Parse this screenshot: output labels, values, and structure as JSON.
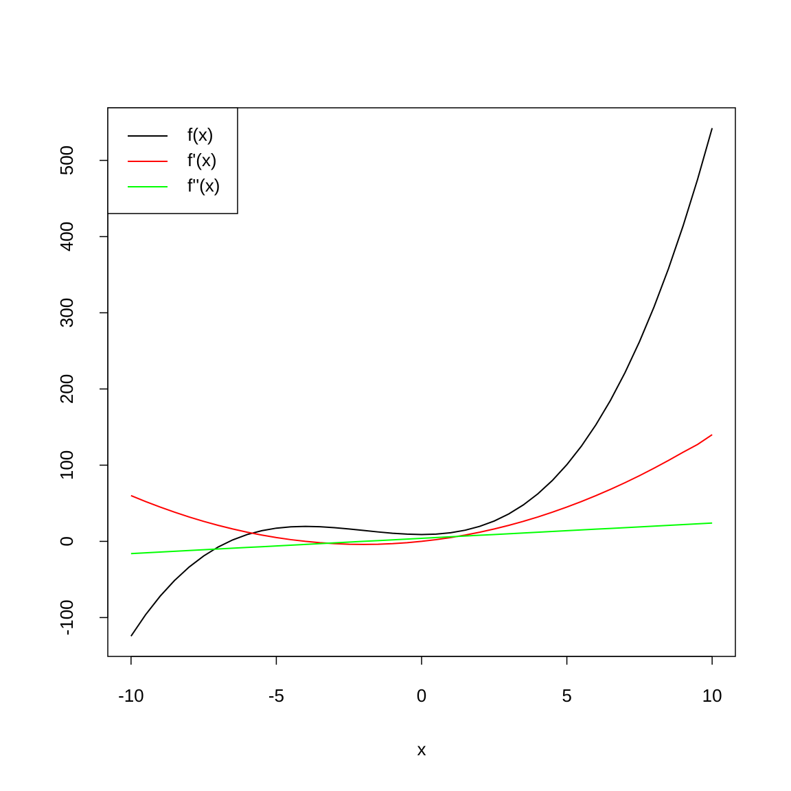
{
  "chart_data": {
    "type": "line",
    "xlabel": "x",
    "x": [
      -10,
      -9.5,
      -9,
      -8.5,
      -8,
      -7.5,
      -7,
      -6.5,
      -6,
      -5.5,
      -5,
      -4.5,
      -4,
      -3.5,
      -3,
      -2.5,
      -2,
      -1.5,
      -1,
      -0.5,
      0,
      0.5,
      1,
      1.5,
      2,
      2.5,
      3,
      3.5,
      4,
      4.5,
      5,
      5.5,
      6,
      6.5,
      7,
      7.5,
      8,
      8.5,
      9,
      9.5,
      10
    ],
    "series": [
      {
        "name": "f(x)",
        "color": "#000000",
        "values": [
          -124.33,
          -96.29,
          -72,
          -51.21,
          -33.67,
          -19.13,
          -7.33,
          1.96,
          9,
          14.04,
          17.33,
          19.13,
          19.67,
          19.21,
          18,
          16.29,
          14.33,
          12.38,
          10.67,
          9.46,
          9,
          9.54,
          11.33,
          14.63,
          19.67,
          26.71,
          36,
          47.79,
          62.33,
          79.88,
          100.67,
          124.96,
          153,
          185.04,
          221.33,
          262.13,
          307.67,
          358.21,
          414,
          475.29,
          542.33
        ]
      },
      {
        "name": "f'(x)",
        "color": "#ff0000",
        "values": [
          60,
          52.25,
          45,
          38.25,
          32,
          26.25,
          21,
          16.25,
          12,
          8.25,
          5,
          2.25,
          0,
          -1.75,
          -3,
          -3.75,
          -4,
          -3.75,
          -3,
          -1.75,
          0,
          2.25,
          5,
          8.25,
          12,
          16.25,
          21,
          26.25,
          32,
          38.25,
          45,
          52.25,
          60,
          68.25,
          77,
          86.25,
          96,
          106.25,
          117,
          127.25,
          140
        ]
      },
      {
        "name": "f''(x)",
        "color": "#00ff00",
        "values": [
          -16,
          -15,
          -14,
          -13,
          -12,
          -11,
          -10,
          -9,
          -8,
          -7,
          -6,
          -5,
          -4,
          -3,
          -2,
          -1,
          0,
          1,
          2,
          3,
          4,
          5,
          6,
          7,
          8,
          9,
          10,
          11,
          12,
          13,
          14,
          15,
          16,
          17,
          18,
          19,
          20,
          21,
          22,
          23,
          24
        ]
      }
    ],
    "xlim": [
      -10.8,
      10.8
    ],
    "ylim": [
      -151,
      569
    ],
    "xticks": [
      -10,
      -5,
      0,
      5,
      10
    ],
    "yticks": [
      -100,
      0,
      100,
      200,
      300,
      400,
      500
    ],
    "legend": "topleft"
  }
}
